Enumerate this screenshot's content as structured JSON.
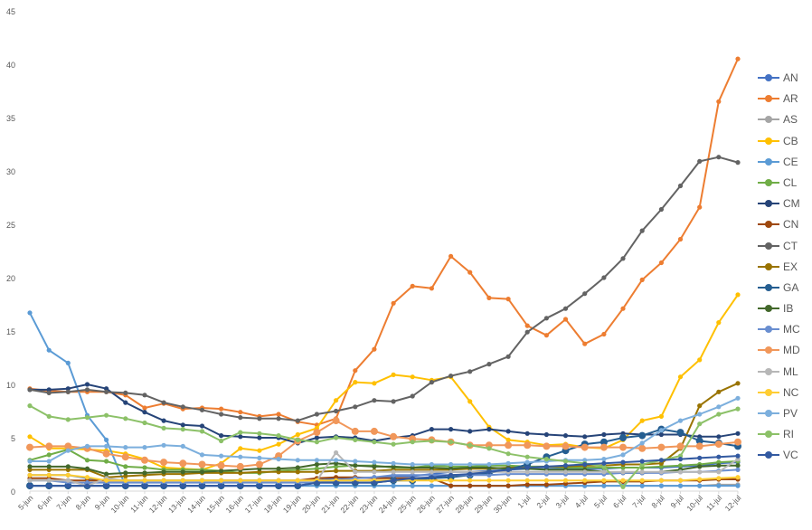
{
  "chart_data": {
    "type": "line",
    "title": "",
    "xlabel": "",
    "ylabel": "",
    "ylim": [
      0,
      45
    ],
    "yticks": [
      0,
      5,
      10,
      15,
      20,
      25,
      30,
      35,
      40,
      45
    ],
    "grid": false,
    "legend_position": "right",
    "x": [
      "5-jun",
      "6-jun",
      "7-jun",
      "8-jun",
      "9-jun",
      "10-jun",
      "11-jun",
      "12-jun",
      "13-jun",
      "14-jun",
      "15-jun",
      "16-jun",
      "17-jun",
      "18-jun",
      "19-jun",
      "20-jun",
      "21-jun",
      "22-jun",
      "23-jun",
      "24-jun",
      "25-jun",
      "26-jun",
      "27-jun",
      "28-jun",
      "29-jun",
      "30-jun",
      "1-jul",
      "2-jul",
      "3-jul",
      "4-jul",
      "5-jul",
      "6-jul",
      "7-jul",
      "8-jul",
      "9-jul",
      "10-jul",
      "11-jul",
      "12-jul"
    ],
    "series": [
      {
        "name": "AN",
        "color": "#4472C4",
        "values": [
          1.5,
          1.5,
          1.5,
          1.2,
          1.0,
          1.0,
          1.0,
          1.0,
          1.0,
          1.0,
          1.0,
          1.0,
          1.0,
          1.0,
          1.0,
          1.0,
          1.2,
          1.2,
          1.3,
          1.4,
          1.4,
          1.6,
          1.8,
          1.8,
          1.9,
          2.0,
          2.1,
          2.1,
          2.1,
          2.1,
          2.1,
          2.2,
          2.2,
          2.2,
          2.3,
          2.4,
          2.6,
          2.7
        ]
      },
      {
        "name": "AR",
        "color": "#ED7D31",
        "values": [
          9.6,
          9.4,
          9.3,
          9.3,
          9.3,
          9.0,
          7.8,
          8.2,
          7.7,
          7.8,
          7.7,
          7.4,
          7.0,
          7.2,
          6.5,
          6.2,
          6.8,
          11.3,
          13.3,
          17.6,
          19.2,
          19.0,
          22.0,
          20.5,
          18.1,
          18.0,
          15.5,
          14.6,
          16.1,
          13.8,
          14.7,
          17.1,
          19.8,
          21.4,
          23.6,
          26.6,
          36.5,
          40.5
        ]
      },
      {
        "name": "AS",
        "color": "#A5A5A5",
        "values": [
          0.5,
          0.5,
          0.5,
          0.5,
          0.5,
          0.5,
          0.5,
          0.5,
          0.5,
          0.5,
          0.5,
          0.5,
          0.5,
          0.5,
          0.5,
          0.5,
          0.5,
          0.5,
          0.5,
          0.5,
          0.5,
          0.5,
          0.5,
          0.5,
          0.5,
          0.5,
          0.5,
          0.5,
          0.5,
          0.5,
          0.5,
          0.5,
          0.5,
          0.5,
          0.5,
          0.5,
          0.6,
          0.6
        ]
      },
      {
        "name": "CB",
        "color": "#FFC000",
        "values": [
          5.1,
          4.0,
          4.0,
          3.9,
          3.8,
          3.5,
          3.0,
          2.2,
          2.1,
          2.0,
          2.6,
          4.0,
          3.8,
          4.4,
          5.3,
          5.9,
          8.5,
          10.2,
          10.1,
          10.9,
          10.7,
          10.4,
          10.7,
          8.4,
          6.0,
          4.8,
          4.6,
          4.3,
          4.4,
          4.1,
          4.0,
          4.8,
          6.6,
          7.0,
          10.7,
          12.3,
          15.8,
          18.4
        ]
      },
      {
        "name": "CE",
        "color": "#5B9BD5",
        "values": [
          16.7,
          13.2,
          12.0,
          7.1,
          4.8,
          0.5,
          0.5,
          0.5,
          0.5,
          0.5,
          0.5,
          0.5,
          0.5,
          0.5,
          0.5,
          0.5,
          0.5,
          0.5,
          0.5,
          0.5,
          0.5,
          0.5,
          0.5,
          0.5,
          0.5,
          0.5,
          0.5,
          0.5,
          0.5,
          0.5,
          0.5,
          0.5,
          0.5,
          0.5,
          0.5,
          0.5,
          0.5,
          0.5
        ]
      },
      {
        "name": "CL",
        "color": "#70AD47",
        "values": [
          2.9,
          3.4,
          3.9,
          2.9,
          2.8,
          2.3,
          2.2,
          2.0,
          2.0,
          2.0,
          1.9,
          1.7,
          1.7,
          1.9,
          2.0,
          2.1,
          2.3,
          2.4,
          2.4,
          2.2,
          2.2,
          2.4,
          2.3,
          2.3,
          2.4,
          2.4,
          2.3,
          2.3,
          2.2,
          2.2,
          2.2,
          2.2,
          2.2,
          2.3,
          2.4,
          2.5,
          2.7,
          2.8
        ]
      },
      {
        "name": "CM",
        "color": "#264478",
        "values": [
          9.5,
          9.5,
          9.6,
          10.0,
          9.6,
          8.3,
          7.4,
          6.6,
          6.2,
          6.1,
          5.2,
          5.1,
          5.0,
          5.0,
          4.5,
          5.0,
          5.1,
          5.0,
          4.7,
          5.0,
          5.2,
          5.8,
          5.8,
          5.6,
          5.8,
          5.6,
          5.4,
          5.3,
          5.2,
          5.1,
          5.3,
          5.4,
          5.3,
          5.3,
          5.3,
          5.1,
          5.1,
          5.4
        ]
      },
      {
        "name": "CN",
        "color": "#9E480E",
        "values": [
          1.2,
          1.2,
          1.0,
          1.0,
          1.0,
          1.0,
          1.0,
          1.0,
          1.0,
          1.0,
          1.0,
          1.0,
          1.0,
          1.0,
          1.0,
          1.2,
          1.3,
          1.3,
          1.2,
          1.2,
          1.2,
          1.2,
          0.5,
          0.5,
          0.5,
          0.5,
          0.6,
          0.6,
          0.7,
          0.8,
          0.9,
          0.9,
          0.9,
          1.0,
          1.0,
          1.0,
          1.1,
          1.1
        ]
      },
      {
        "name": "CT",
        "color": "#636363",
        "values": [
          9.5,
          9.2,
          9.3,
          9.5,
          9.3,
          9.2,
          9.0,
          8.3,
          7.9,
          7.6,
          7.2,
          6.9,
          6.8,
          6.8,
          6.6,
          7.2,
          7.5,
          7.9,
          8.5,
          8.4,
          8.9,
          10.2,
          10.8,
          11.2,
          11.9,
          12.6,
          14.9,
          16.2,
          17.1,
          18.5,
          20.0,
          21.8,
          24.4,
          26.4,
          28.6,
          30.9,
          31.3,
          30.8
        ]
      },
      {
        "name": "EX",
        "color": "#997300",
        "values": [
          2.0,
          2.0,
          2.0,
          2.0,
          1.3,
          1.4,
          1.5,
          1.6,
          1.6,
          1.7,
          1.7,
          1.7,
          1.8,
          1.8,
          1.8,
          1.8,
          1.9,
          1.9,
          1.9,
          2.0,
          2.0,
          2.0,
          2.0,
          2.1,
          2.1,
          2.2,
          2.2,
          2.3,
          2.3,
          2.4,
          2.4,
          2.5,
          2.5,
          2.6,
          4.0,
          8.0,
          9.3,
          10.1
        ]
      },
      {
        "name": "GA",
        "color": "#255E91",
        "values": [
          0.5,
          0.5,
          0.5,
          0.5,
          0.5,
          0.5,
          0.5,
          0.5,
          0.5,
          0.5,
          0.5,
          0.5,
          0.5,
          0.5,
          0.5,
          0.8,
          0.8,
          0.8,
          0.8,
          1.0,
          1.0,
          1.2,
          1.3,
          1.5,
          1.7,
          2.0,
          2.5,
          3.2,
          3.8,
          4.4,
          4.6,
          5.0,
          5.2,
          5.8,
          5.5,
          4.7,
          4.5,
          4.2
        ]
      },
      {
        "name": "IB",
        "color": "#43682B",
        "values": [
          2.3,
          2.3,
          2.3,
          2.1,
          1.6,
          1.7,
          1.7,
          1.8,
          1.8,
          1.8,
          1.9,
          2.0,
          2.1,
          2.1,
          2.2,
          2.5,
          2.6,
          2.4,
          2.3,
          2.3,
          2.2,
          2.2,
          2.1,
          2.2,
          2.2,
          2.1,
          2.1,
          2.0,
          2.0,
          2.0,
          1.8,
          1.7,
          1.7,
          1.8,
          2.0,
          2.3,
          2.4,
          2.4
        ]
      },
      {
        "name": "MC",
        "color": "#698ED0",
        "values": [
          1.0,
          1.0,
          0.8,
          0.8,
          0.8,
          0.8,
          0.8,
          0.8,
          0.8,
          0.8,
          0.8,
          0.8,
          0.8,
          0.8,
          0.8,
          0.8,
          1.0,
          1.2,
          1.3,
          1.5,
          1.5,
          1.5,
          1.5,
          1.5,
          1.5,
          1.6,
          1.6,
          1.6,
          1.6,
          1.6,
          1.6,
          1.7,
          1.7,
          1.7,
          1.8,
          1.8,
          1.9,
          2.0
        ]
      },
      {
        "name": "MD",
        "color": "#F1975A",
        "values": [
          4.1,
          4.2,
          4.2,
          4.0,
          3.5,
          3.2,
          2.9,
          2.7,
          2.6,
          2.5,
          2.4,
          2.3,
          2.5,
          3.3,
          4.7,
          5.5,
          6.6,
          5.6,
          5.6,
          5.1,
          4.9,
          4.8,
          4.6,
          4.3,
          4.3,
          4.3,
          4.3,
          4.2,
          4.2,
          4.1,
          4.1,
          4.1,
          4.0,
          4.1,
          4.2,
          4.2,
          4.4,
          4.6
        ]
      },
      {
        "name": "ML",
        "color": "#B7B7B7",
        "values": [
          1.0,
          1.0,
          1.0,
          0.5,
          1.2,
          1.0,
          1.0,
          1.0,
          1.0,
          1.0,
          1.0,
          1.0,
          1.0,
          1.0,
          1.0,
          1.0,
          3.6,
          1.8,
          1.8,
          1.8,
          1.8,
          1.8,
          1.8,
          1.8,
          1.8,
          1.8,
          1.8,
          1.8,
          1.8,
          1.8,
          1.8,
          1.8,
          1.8,
          1.8,
          1.8,
          1.8,
          1.8,
          3.0
        ]
      },
      {
        "name": "NC",
        "color": "#FFCD33",
        "values": [
          1.5,
          1.5,
          1.5,
          1.3,
          1.0,
          1.0,
          1.0,
          1.0,
          1.0,
          1.0,
          1.0,
          1.0,
          1.0,
          1.0,
          1.0,
          1.0,
          1.0,
          1.0,
          1.0,
          1.0,
          1.0,
          1.0,
          1.0,
          1.0,
          1.0,
          1.0,
          1.0,
          1.0,
          1.0,
          1.0,
          1.0,
          1.0,
          1.0,
          1.0,
          1.0,
          1.1,
          1.2,
          1.3
        ]
      },
      {
        "name": "PV",
        "color": "#7CAFDD",
        "values": [
          2.8,
          2.8,
          3.8,
          4.2,
          4.2,
          4.1,
          4.1,
          4.3,
          4.2,
          3.4,
          3.3,
          3.2,
          3.1,
          3.0,
          2.9,
          2.9,
          2.9,
          2.8,
          2.7,
          2.6,
          2.5,
          2.5,
          2.5,
          2.5,
          2.5,
          2.6,
          2.7,
          2.8,
          2.9,
          2.9,
          3.0,
          3.4,
          4.5,
          5.7,
          6.6,
          7.2,
          7.9,
          8.7
        ]
      },
      {
        "name": "RI",
        "color": "#8CC168",
        "values": [
          8.0,
          7.0,
          6.7,
          6.9,
          7.1,
          6.8,
          6.4,
          5.9,
          5.8,
          5.6,
          4.7,
          5.5,
          5.4,
          5.2,
          4.8,
          4.6,
          5.0,
          4.8,
          4.6,
          4.4,
          4.6,
          4.7,
          4.6,
          4.3,
          4.0,
          3.5,
          3.2,
          3.0,
          2.8,
          2.6,
          2.3,
          0.4,
          2.5,
          2.9,
          3.3,
          6.3,
          7.2,
          7.7
        ]
      },
      {
        "name": "VC",
        "color": "#335AA1",
        "values": [
          0.5,
          0.5,
          0.5,
          0.5,
          0.5,
          0.5,
          0.5,
          0.5,
          0.5,
          0.5,
          0.5,
          0.5,
          0.5,
          0.5,
          0.5,
          0.8,
          0.8,
          0.8,
          0.8,
          1.0,
          1.2,
          1.3,
          1.5,
          1.6,
          1.8,
          2.0,
          2.2,
          2.3,
          2.4,
          2.5,
          2.6,
          2.7,
          2.8,
          2.9,
          3.0,
          3.1,
          3.2,
          3.3
        ]
      }
    ]
  }
}
